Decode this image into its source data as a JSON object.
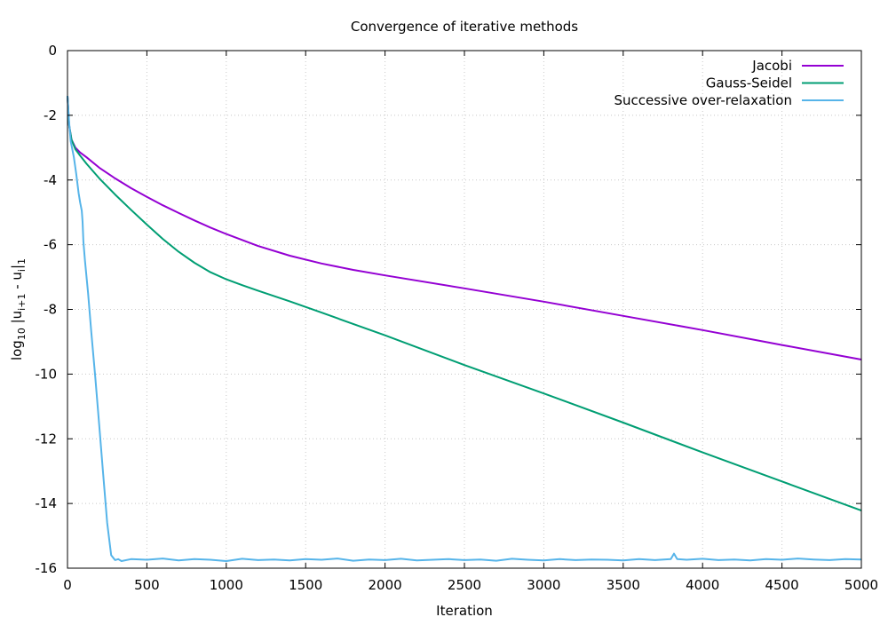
{
  "chart_data": {
    "type": "line",
    "title": "Convergence of iterative methods",
    "xlabel": "Iteration",
    "ylabel": {
      "base": "log",
      "base_sub": "10",
      "open": " |u",
      "sub1": "i+1",
      "mid": " - u",
      "sub2": "i",
      "close": "|",
      "sub3": "1"
    },
    "xlim": [
      0,
      5000
    ],
    "ylim": [
      -16,
      0
    ],
    "xticks": [
      0,
      500,
      1000,
      1500,
      2000,
      2500,
      3000,
      3500,
      4000,
      4500,
      5000
    ],
    "yticks": [
      0,
      -2,
      -4,
      -6,
      -8,
      -10,
      -12,
      -14,
      -16
    ],
    "grid": true,
    "grid_style": "dotted",
    "legend_position": "top-right",
    "series": [
      {
        "name": "Jacobi",
        "color": "#9400d3",
        "x": [
          0,
          10,
          25,
          50,
          80,
          120,
          200,
          300,
          400,
          500,
          600,
          700,
          800,
          900,
          1000,
          1200,
          1400,
          1600,
          1800,
          2000,
          2500,
          3000,
          3500,
          4000,
          4500,
          5000
        ],
        "y": [
          -1.4,
          -2.3,
          -2.75,
          -3.0,
          -3.15,
          -3.3,
          -3.62,
          -3.95,
          -4.25,
          -4.52,
          -4.78,
          -5.02,
          -5.25,
          -5.47,
          -5.67,
          -6.04,
          -6.34,
          -6.58,
          -6.78,
          -6.95,
          -7.35,
          -7.76,
          -8.2,
          -8.64,
          -9.1,
          -9.55
        ]
      },
      {
        "name": "Gauss-Seidel",
        "color": "#009e73",
        "x": [
          0,
          10,
          25,
          50,
          80,
          120,
          200,
          300,
          400,
          500,
          600,
          700,
          800,
          900,
          1000,
          1100,
          1200,
          1400,
          1600,
          1800,
          2000,
          2500,
          3000,
          3500,
          4000,
          4500,
          5000
        ],
        "y": [
          -1.4,
          -2.3,
          -2.75,
          -3.05,
          -3.25,
          -3.5,
          -3.95,
          -4.45,
          -4.92,
          -5.38,
          -5.82,
          -6.22,
          -6.56,
          -6.85,
          -7.07,
          -7.25,
          -7.42,
          -7.75,
          -8.1,
          -8.45,
          -8.8,
          -9.72,
          -10.6,
          -11.5,
          -12.42,
          -13.32,
          -14.22
        ]
      },
      {
        "name": "Successive over-relaxation",
        "color": "#56b4e9",
        "x": [
          0,
          10,
          20,
          30,
          40,
          55,
          70,
          80,
          90,
          95,
          100,
          110,
          130,
          150,
          175,
          200,
          225,
          250,
          275,
          300,
          320,
          340,
          400,
          500,
          600,
          700,
          800,
          900,
          1000,
          1100,
          1200,
          1300,
          1400,
          1500,
          1600,
          1700,
          1800,
          1900,
          2000,
          2100,
          2200,
          2300,
          2400,
          2500,
          2600,
          2700,
          2800,
          2900,
          3000,
          3100,
          3200,
          3300,
          3400,
          3500,
          3600,
          3700,
          3800,
          3820,
          3840,
          3900,
          4000,
          4100,
          4200,
          4300,
          4400,
          4500,
          4600,
          4700,
          4800,
          4900,
          5000
        ],
        "y": [
          -1.4,
          -2.2,
          -2.8,
          -3.05,
          -3.3,
          -3.8,
          -4.4,
          -4.7,
          -4.95,
          -5.3,
          -5.9,
          -6.5,
          -7.5,
          -8.7,
          -10.1,
          -11.6,
          -13.1,
          -14.6,
          -15.6,
          -15.75,
          -15.72,
          -15.78,
          -15.72,
          -15.74,
          -15.7,
          -15.76,
          -15.72,
          -15.74,
          -15.78,
          -15.71,
          -15.75,
          -15.73,
          -15.76,
          -15.72,
          -15.74,
          -15.7,
          -15.77,
          -15.73,
          -15.75,
          -15.71,
          -15.76,
          -15.74,
          -15.72,
          -15.75,
          -15.73,
          -15.77,
          -15.71,
          -15.74,
          -15.76,
          -15.72,
          -15.75,
          -15.73,
          -15.74,
          -15.76,
          -15.72,
          -15.75,
          -15.72,
          -15.55,
          -15.72,
          -15.74,
          -15.71,
          -15.75,
          -15.73,
          -15.76,
          -15.72,
          -15.74,
          -15.7,
          -15.73,
          -15.75,
          -15.72,
          -15.73
        ]
      }
    ]
  }
}
